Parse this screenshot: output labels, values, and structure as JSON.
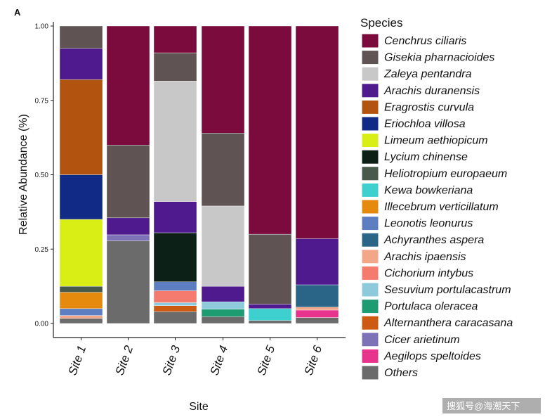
{
  "panel_label": "A",
  "watermark": "搜狐号@海潮天下",
  "chart_data": {
    "type": "bar",
    "stacked": true,
    "xlabel": "Site",
    "ylabel": "Relative Abundance (%)",
    "ylim": [
      0,
      1
    ],
    "yticks": [
      0,
      0.25,
      0.5,
      0.75,
      1
    ],
    "ytick_labels": [
      "0.00",
      "0.25",
      "0.50",
      "0.75",
      "1.00"
    ],
    "legend_title": "Species",
    "legend_position": "right",
    "categories": [
      "Site 1",
      "Site 2",
      "Site 3",
      "Site 4",
      "Site 5",
      "Site 6"
    ],
    "series": [
      {
        "name": "Cenchrus ciliaris",
        "color": "#7b0a3d",
        "values": [
          0.0,
          0.4,
          0.09,
          0.36,
          0.7,
          0.715
        ]
      },
      {
        "name": "Gisekia pharnacioides",
        "color": "#5f5353",
        "values": [
          0.075,
          0.245,
          0.095,
          0.245,
          0.235,
          0.0
        ]
      },
      {
        "name": "Zaleya pentandra",
        "color": "#c8c8c8",
        "values": [
          0.0,
          0.0,
          0.405,
          0.27,
          0.0,
          0.0
        ]
      },
      {
        "name": "Arachis duranensis",
        "color": "#4f1a8e",
        "values": [
          0.105,
          0.057,
          0.105,
          0.052,
          0.015,
          0.155
        ]
      },
      {
        "name": "Eragrostis curvula",
        "color": "#b2530f",
        "values": [
          0.32,
          0.0,
          0.0,
          0.0,
          0.0,
          0.0
        ]
      },
      {
        "name": "Eriochloa villosa",
        "color": "#102a85",
        "values": [
          0.15,
          0.0,
          0.0,
          0.0,
          0.0,
          0.0
        ]
      },
      {
        "name": "Limeum aethiopicum",
        "color": "#d9ee14",
        "values": [
          0.225,
          0.0,
          0.0,
          0.0,
          0.0,
          0.0
        ]
      },
      {
        "name": "Lycium chinense",
        "color": "#0c2017",
        "values": [
          0.0,
          0.0,
          0.165,
          0.0,
          0.0,
          0.0
        ]
      },
      {
        "name": "Heliotropium europaeum",
        "color": "#475a4c",
        "values": [
          0.02,
          0.0,
          0.0,
          0.0,
          0.0,
          0.0
        ]
      },
      {
        "name": "Kewa bowkeriana",
        "color": "#3ecfcf",
        "values": [
          0.0,
          0.0,
          0.0,
          0.0,
          0.04,
          0.0
        ]
      },
      {
        "name": "Illecebrum verticillatum",
        "color": "#e58a0c",
        "values": [
          0.055,
          0.0,
          0.0,
          0.0,
          0.0,
          0.0
        ]
      },
      {
        "name": "Leonotis leonurus",
        "color": "#5d7fc2",
        "values": [
          0.023,
          0.0,
          0.03,
          0.0,
          0.0,
          0.0
        ]
      },
      {
        "name": "Achyranthes aspera",
        "color": "#2a6587",
        "values": [
          0.0,
          0.0,
          0.0,
          0.0,
          0.0,
          0.075
        ]
      },
      {
        "name": "Arachis ipaensis",
        "color": "#f3a688",
        "values": [
          0.01,
          0.0,
          0.0,
          0.0,
          0.0,
          0.01
        ]
      },
      {
        "name": "Cichorium intybus",
        "color": "#f47b6e",
        "values": [
          0.0,
          0.0,
          0.04,
          0.0,
          0.0,
          0.0
        ]
      },
      {
        "name": "Sesuvium portulacastrum",
        "color": "#8dcbdc",
        "values": [
          0.0,
          0.0,
          0.01,
          0.025,
          0.0,
          0.0
        ]
      },
      {
        "name": "Portulaca oleracea",
        "color": "#1d9b71",
        "values": [
          0.0,
          0.0,
          0.0,
          0.025,
          0.0,
          0.0
        ]
      },
      {
        "name": "Alternanthera caracasana",
        "color": "#cd5a12",
        "values": [
          0.0,
          0.0,
          0.02,
          0.0,
          0.0,
          0.0
        ]
      },
      {
        "name": "Cicer arietinum",
        "color": "#7d72b8",
        "values": [
          0.0,
          0.02,
          0.0,
          0.0,
          0.0,
          0.0
        ]
      },
      {
        "name": "Aegilops speltoides",
        "color": "#e8338c",
        "values": [
          0.0,
          0.0,
          0.0,
          0.0,
          0.0,
          0.025
        ]
      },
      {
        "name": "Others",
        "color": "#6b6b6b",
        "values": [
          0.017,
          0.278,
          0.04,
          0.023,
          0.01,
          0.02
        ]
      }
    ]
  }
}
